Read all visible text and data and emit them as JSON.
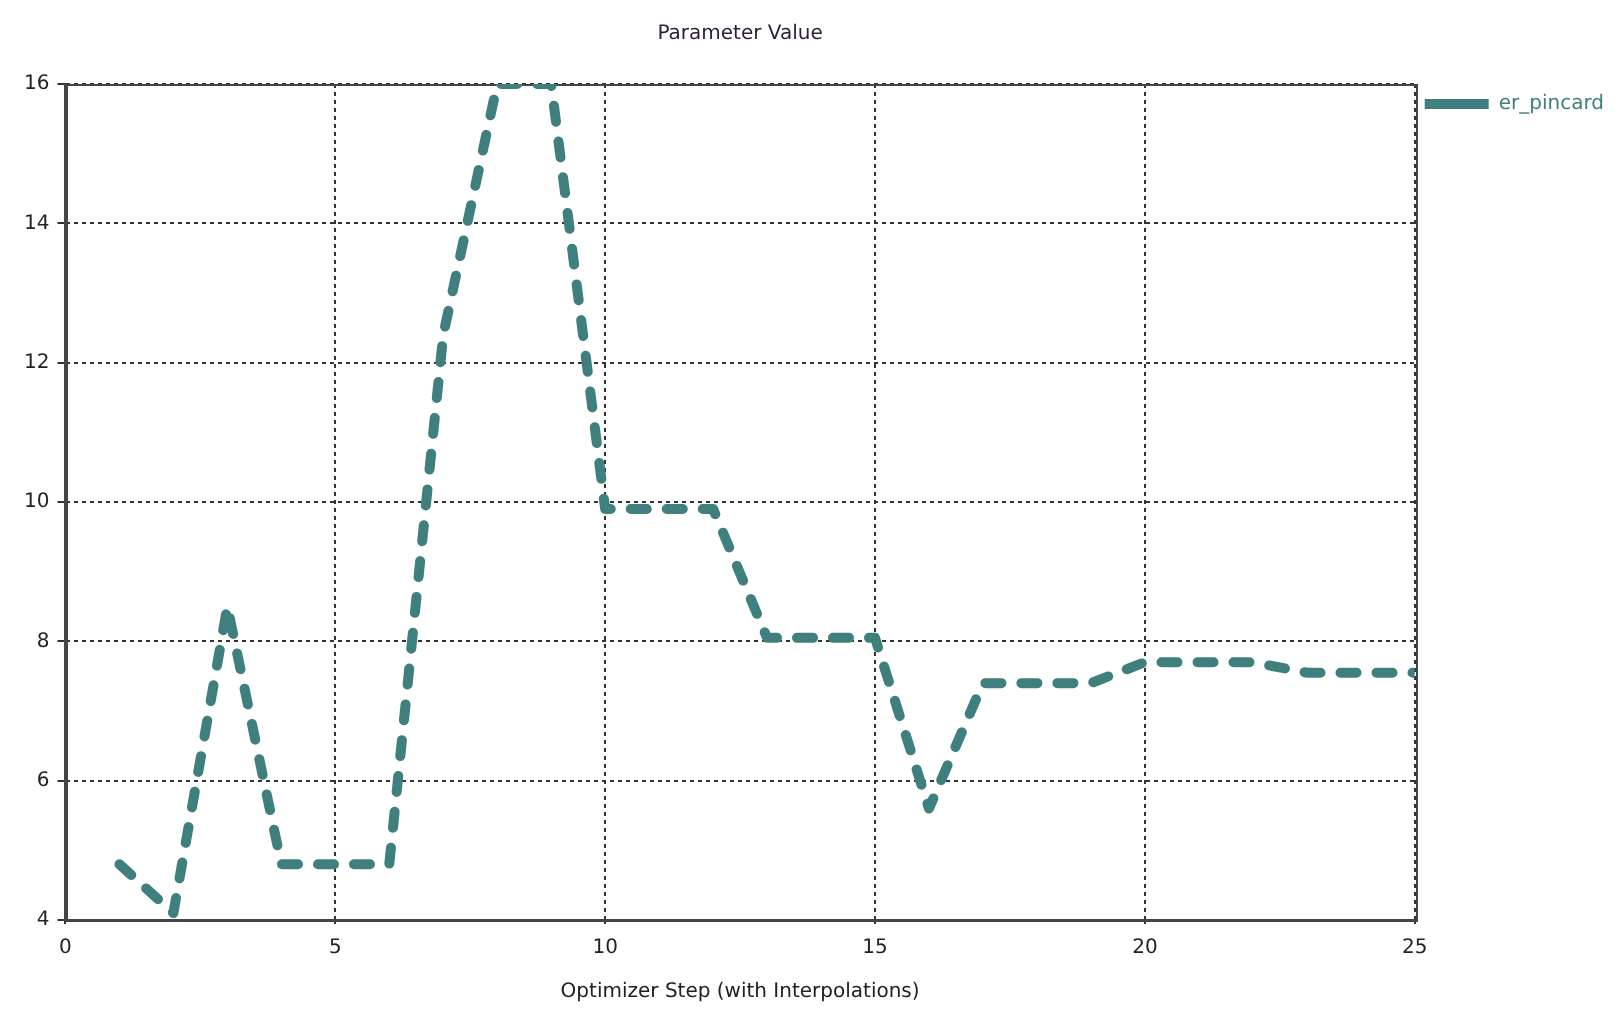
{
  "chart_data": {
    "type": "line",
    "title": "Parameter Value",
    "xlabel": "Optimizer Step (with Interpolations)",
    "x": [
      1,
      2,
      3,
      4,
      5,
      6,
      7,
      8,
      9,
      10,
      11,
      12,
      13,
      14,
      15,
      16,
      17,
      18,
      19,
      20,
      21,
      22,
      23,
      24,
      25
    ],
    "series": [
      {
        "name": "er_pincard",
        "color": "#3f807e",
        "values": [
          4.8,
          4.1,
          8.5,
          4.8,
          4.8,
          4.8,
          12.4,
          16,
          16,
          9.9,
          9.9,
          9.9,
          8.05,
          8.05,
          8.05,
          5.6,
          7.4,
          7.4,
          7.4,
          7.7,
          7.7,
          7.7,
          7.55,
          7.55,
          7.55
        ]
      }
    ],
    "xlim": [
      0,
      25
    ],
    "xticks": [
      0,
      5,
      10,
      15,
      20,
      25
    ],
    "ylim": [
      4,
      16
    ],
    "yticks": [
      4,
      6,
      8,
      10,
      12,
      14,
      16
    ],
    "grid": true,
    "legend": "top right",
    "marker": "none",
    "line_style": "dashed"
  }
}
